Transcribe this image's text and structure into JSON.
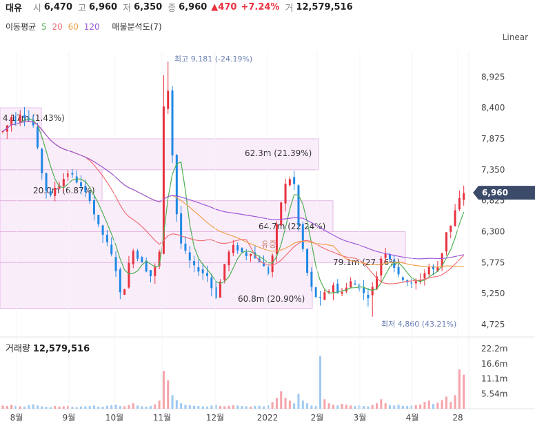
{
  "header": {
    "name": "대유",
    "open_label": "시",
    "open": "6,470",
    "high_label": "고",
    "high": "6,960",
    "low_label": "저",
    "low": "6,350",
    "close_label": "종",
    "close": "6,960",
    "change": "▲470",
    "change_pct": "+7.24%",
    "volume_label": "거",
    "volume": "12,579,516"
  },
  "indicators": {
    "ma_label": "이동평균",
    "ma5": "5",
    "ma20": "20",
    "ma60": "60",
    "ma120": "120",
    "profile_label": "매물분석도(7)"
  },
  "scale_mode": "Linear",
  "colors": {
    "up": "#e8313f",
    "down": "#1e88e5",
    "ma5": "#4caf50",
    "ma20": "#f06d74",
    "ma60": "#f0a04b",
    "ma120": "#9c59d9",
    "profile": "#f5def5",
    "accent_tag": "#3d4b6b"
  },
  "chart_data": {
    "type": "candlestick",
    "price_axis_ticks": [
      "8,925",
      "8,400",
      "7,875",
      "7,350",
      "6,825",
      "6,300",
      "5,775",
      "5,250",
      "4,725"
    ],
    "price_axis_values": [
      8925,
      8400,
      7875,
      7350,
      6825,
      6300,
      5775,
      5250,
      4725
    ],
    "ylim": [
      4550,
      9350
    ],
    "current_price": "6,960",
    "time_axis_labels": [
      "8월",
      "9월",
      "10월",
      "11월",
      "12월",
      "2022",
      "2월",
      "3월",
      "4월",
      "28"
    ],
    "high_marker": "최고 9,181 (-24.19%)",
    "low_marker": "최저 4,860 (43.21%)",
    "volume_profile": [
      {
        "label": "4.17m (1.43%)",
        "from": 7875,
        "to": 8400
      },
      {
        "label": "62.3m (21.39%)",
        "from": 7350,
        "to": 7875
      },
      {
        "label": "20.0m (6.87%)",
        "from": 6825,
        "to": 7350
      },
      {
        "label": "64.7m (22.24%)",
        "from": 6300,
        "to": 6825
      },
      {
        "label": "79.1m (27.16%)",
        "from": 5775,
        "to": 6300
      },
      {
        "label": "60.8m (20.90%)",
        "from": 5000,
        "to": 5775
      }
    ],
    "dividend_tag": "유증",
    "volume_title": "거래량",
    "volume_value": "12,579,516",
    "volume_axis_ticks": [
      "22.2m",
      "16.6m",
      "11.1m",
      "5.54m"
    ],
    "volume_axis_values": [
      22.2,
      16.6,
      11.1,
      5.54
    ],
    "volume_max": 26,
    "price_path": [
      8000,
      8100,
      8250,
      8150,
      8300,
      8250,
      8200,
      8100,
      7700,
      7300,
      7000,
      6900,
      7050,
      7100,
      7200,
      7300,
      7250,
      7150,
      7050,
      6950,
      6850,
      6600,
      6400,
      6250,
      6100,
      5900,
      5650,
      5250,
      5350,
      5750,
      6000,
      5850,
      5800,
      5650,
      5550,
      5700,
      5950,
      8400,
      8700,
      7600,
      6600,
      6100,
      5950,
      5800,
      5700,
      5650,
      5600,
      5550,
      5350,
      5200,
      5450,
      5750,
      5950,
      6050,
      6000,
      5950,
      5900,
      5950,
      5850,
      5800,
      5700,
      5600,
      5900,
      6400,
      6800,
      7100,
      7200,
      7100,
      6400,
      6000,
      5600,
      5350,
      5200,
      5150,
      5250,
      5300,
      5400,
      5250,
      5300,
      5350,
      5450,
      5400,
      5350,
      5250,
      5200,
      5350,
      5550,
      5850,
      5950,
      5850,
      5700,
      5550,
      5500,
      5450,
      5400,
      5450,
      5500,
      5600,
      5700,
      5650,
      5700,
      5950,
      6300,
      6400,
      6650,
      6850,
      6960
    ],
    "volume_bars": [
      1.2,
      1.0,
      1.5,
      1.1,
      0.9,
      0.8,
      1.3,
      1.6,
      1.2,
      0.9,
      0.7,
      0.6,
      1.0,
      0.8,
      0.9,
      1.1,
      0.7,
      0.6,
      0.8,
      0.9,
      1.0,
      1.2,
      0.8,
      0.7,
      1.1,
      1.3,
      1.5,
      1.0,
      0.9,
      1.4,
      2.0,
      1.2,
      0.9,
      0.8,
      1.0,
      1.6,
      3.0,
      14.0,
      10.5,
      5.0,
      3.2,
      2.0,
      1.5,
      1.3,
      1.1,
      1.0,
      0.9,
      0.8,
      1.2,
      1.5,
      1.0,
      0.9,
      1.1,
      1.3,
      1.2,
      1.0,
      0.9,
      0.8,
      1.0,
      1.1,
      0.9,
      1.3,
      2.5,
      4.0,
      6.5,
      4.0,
      3.0,
      2.0,
      5.5,
      3.0,
      2.0,
      1.2,
      1.0,
      19.5,
      3.5,
      2.0,
      1.5,
      1.2,
      1.8,
      1.5,
      1.2,
      1.0,
      1.3,
      1.0,
      0.9,
      1.4,
      2.0,
      3.5,
      2.0,
      1.4,
      1.2,
      1.5,
      1.1,
      1.0,
      1.2,
      1.4,
      1.6,
      2.5,
      3.0,
      1.8,
      2.2,
      3.2,
      4.5,
      2.5,
      5.0,
      14.5,
      12.6
    ]
  }
}
